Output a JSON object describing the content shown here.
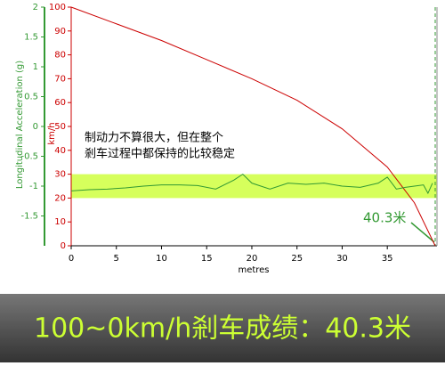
{
  "chart_data": {
    "type": "line",
    "xlabel": "metres",
    "ylabel": "km/h",
    "y2label": "Longitudinal Acceleration (g)",
    "xlim": [
      0,
      40.5
    ],
    "xticks": [
      0,
      5,
      10,
      15,
      20,
      25,
      30,
      35
    ],
    "ylim": [
      0,
      100
    ],
    "yticks": [
      0,
      10,
      20,
      30,
      40,
      50,
      60,
      70,
      80,
      90,
      100
    ],
    "y2lim": [
      -2,
      2
    ],
    "y2ticks": [
      2,
      1.5,
      1,
      0.5,
      0,
      -0.5,
      -1,
      -1.5
    ],
    "band": [
      20,
      30
    ],
    "band_color": "#ccff33",
    "series": [
      {
        "name": "km/h",
        "color": "#cc0000",
        "x": [
          0,
          5,
          10,
          15,
          20,
          25,
          30,
          35,
          38,
          40.3
        ],
        "values": [
          100,
          93,
          86,
          78,
          70,
          61,
          49,
          33,
          18,
          0
        ]
      },
      {
        "name": "Longitudinal Acceleration (g)",
        "color": "#339933",
        "axis": "y2",
        "x": [
          0,
          2,
          4,
          6,
          8,
          10,
          12,
          14,
          16,
          18,
          19,
          20,
          22,
          24,
          26,
          28,
          30,
          32,
          34,
          35,
          36,
          37,
          38,
          39,
          39.5,
          40
        ],
        "values": [
          -1.08,
          -1.06,
          -1.05,
          -1.03,
          -1.0,
          -0.98,
          -0.98,
          -0.99,
          -1.05,
          -0.9,
          -0.8,
          -0.95,
          -1.05,
          -0.95,
          -0.97,
          -0.95,
          -1.0,
          -1.02,
          -0.95,
          -0.85,
          -1.05,
          -1.02,
          -1.0,
          -0.98,
          -1.12,
          -0.95
        ]
      }
    ],
    "annotations": [
      "制动力不算很大，但在整个",
      "剎车过程中都保持的比较稳定",
      "40.3米"
    ],
    "banner": "100~0km/h剎车成绩：40.3米"
  }
}
